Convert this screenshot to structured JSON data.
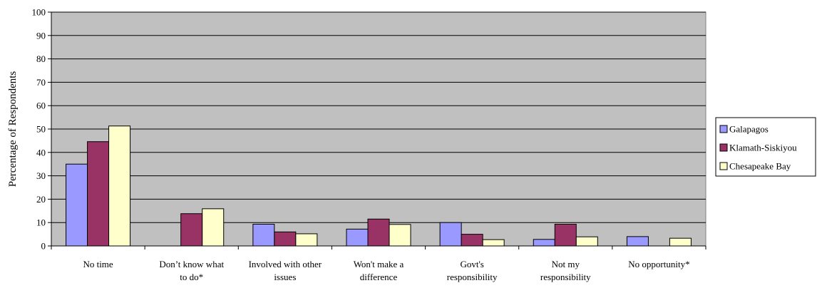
{
  "chart_data": {
    "type": "bar",
    "title": "",
    "xlabel": "",
    "ylabel": "Percentage of Respondents",
    "ylim": [
      0,
      100
    ],
    "yticks": [
      0,
      10,
      20,
      30,
      40,
      50,
      60,
      70,
      80,
      90,
      100
    ],
    "grid": true,
    "legend_position": "right",
    "categories": [
      [
        "No time"
      ],
      [
        "Don’t know what",
        "to do*"
      ],
      [
        "Involved with other",
        "issues"
      ],
      [
        "Won't make a",
        "difference"
      ],
      [
        "Govt's",
        "responsibility"
      ],
      [
        "Not my",
        "responsibility"
      ],
      [
        "No opportunity*"
      ]
    ],
    "series": [
      {
        "name": "Galapagos",
        "color": "#9999ff",
        "values": [
          35,
          0,
          9.3,
          7.2,
          10,
          2.8,
          4
        ]
      },
      {
        "name": "Klamath-Siskiyou",
        "color": "#993366",
        "values": [
          44.6,
          13.8,
          6,
          11.5,
          5,
          9.3,
          0
        ]
      },
      {
        "name": "Chesapeake Bay",
        "color": "#ffffcc",
        "values": [
          51.3,
          15.9,
          5.2,
          9.2,
          2.7,
          3.9,
          3.3
        ]
      }
    ],
    "plot_background": "#c0c0c0"
  }
}
